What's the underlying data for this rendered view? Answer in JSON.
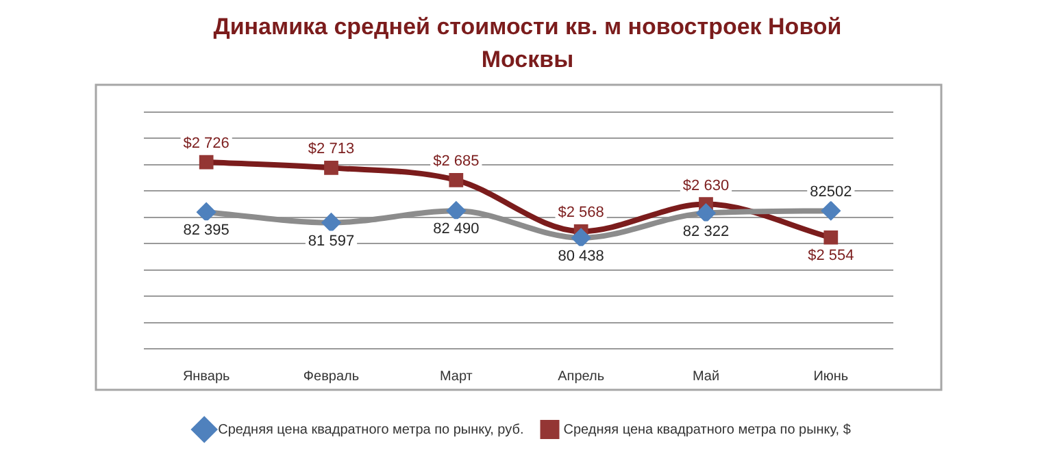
{
  "chart_data": {
    "type": "line",
    "title": "Динамика средней стоимости кв. м новостроек Новой Москвы",
    "categories": [
      "Январь",
      "Февраль",
      "Март",
      "Апрель",
      "Май",
      "Июнь"
    ],
    "series": [
      {
        "name": "Средняя цена квадратного метра по рынку, руб.",
        "color": "#8c8c8c",
        "colors": [
          "#4f81bd",
          "#4f81bd",
          "#4f81bd",
          "#4f81bd",
          "#4f81bd",
          "#4f81bd"
        ],
        "marker": "diamond",
        "values": [
          82395,
          81597,
          82490,
          80438,
          82322,
          82502
        ],
        "value_labels": [
          "82 395",
          "81 597",
          "82 490",
          "80 438",
          "82 322",
          "82502"
        ]
      },
      {
        "name": "Средняя цена квадратного метра по рынку, $",
        "color": "#7b1c1c",
        "colors": [
          "#943634",
          "#943634",
          "#943634",
          "#943634",
          "#943634",
          "#943634"
        ],
        "marker": "square",
        "axis": "y2",
        "values": [
          2726,
          2713,
          2685,
          2568,
          2630,
          2554
        ],
        "value_labels": [
          "$2 726",
          "$2 713",
          "$2 685",
          "$2 568",
          "$2 630",
          "$2 554"
        ]
      }
    ],
    "ylim": [
      72000,
      90000
    ],
    "yticks": [
      {
        "value": 72000,
        "label": null
      },
      {
        "value": 74000,
        "label": null
      },
      {
        "value": 76000,
        "label": null
      },
      {
        "value": 78000,
        "label": null
      },
      {
        "value": 80000,
        "label": null
      },
      {
        "value": 82000,
        "label": null
      },
      {
        "value": 84000,
        "label": null
      },
      {
        "value": 86000,
        "label": null
      },
      {
        "value": 88000,
        "label": null
      },
      {
        "value": 90000,
        "label": null
      }
    ],
    "y2lim": [
      2300,
      2840
    ],
    "tick_labels": "x",
    "grid": "y",
    "legend": "bottom"
  }
}
